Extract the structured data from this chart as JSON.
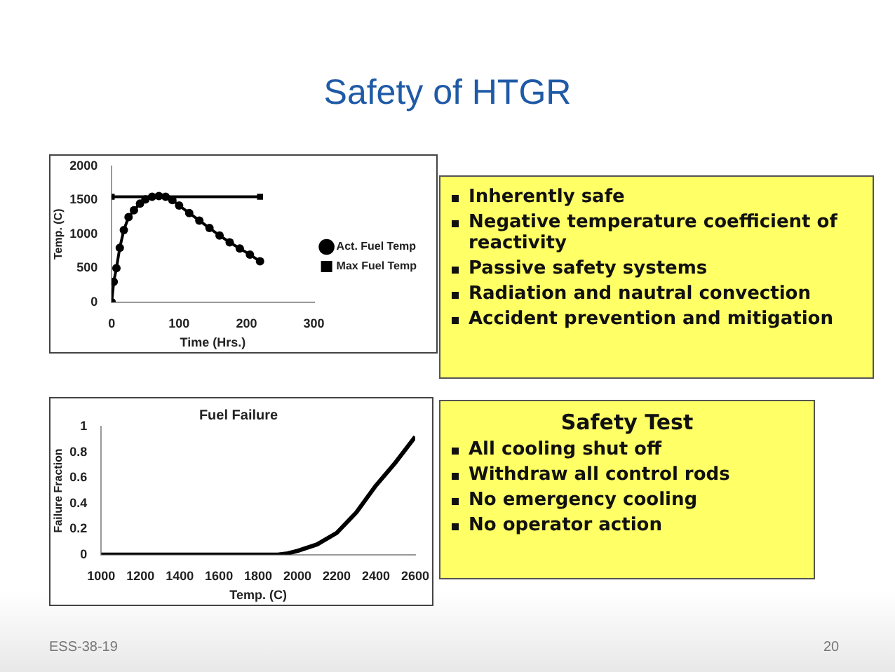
{
  "chart_data": [
    {
      "type": "other",
      "title": "Safety of HTGR",
      "annotations": [
        "ESS-38-19",
        "20"
      ]
    },
    {
      "type": "line",
      "xlabel": "Time (Hrs.)",
      "ylabel": "Temp. (C)",
      "xlim": [
        0,
        300
      ],
      "xticks": [
        0,
        100,
        200,
        300
      ],
      "ylim": [
        0,
        2000
      ],
      "yticks": [
        0,
        500,
        1000,
        1500,
        2000
      ],
      "grid": false,
      "legend": "right",
      "line_style": "solid",
      "series": [
        {
          "name": "Act. Fuel Temp",
          "color": "#000000",
          "marker": "circle",
          "x": [
            0,
            3,
            7,
            12,
            18,
            25,
            33,
            42,
            50,
            60,
            70,
            80,
            90,
            100,
            115,
            130,
            145,
            160,
            175,
            190,
            205,
            220
          ],
          "values": [
            0,
            300,
            500,
            800,
            1060,
            1250,
            1350,
            1450,
            1510,
            1550,
            1560,
            1550,
            1500,
            1420,
            1310,
            1200,
            1090,
            980,
            880,
            790,
            700,
            600
          ]
        },
        {
          "name": "Max Fuel Temp",
          "color": "#000000",
          "marker": "square",
          "x": [
            0,
            220
          ],
          "values": [
            1550,
            1550
          ]
        }
      ]
    },
    {
      "type": "other",
      "annotations": [
        "Inherently safe",
        "Negative temperature coefficient of reactivity",
        "Passive safety systems",
        "Radiation and nautral convection",
        "Accident prevention and mitigation"
      ]
    },
    {
      "type": "line",
      "title": "Fuel Failure",
      "xlabel": "Temp. (C)",
      "ylabel": "Failure Fraction",
      "xlim": [
        1000,
        2600
      ],
      "xticks": [
        1000,
        1200,
        1400,
        1600,
        1800,
        2000,
        2200,
        2400,
        2600
      ],
      "ylim": [
        0,
        1
      ],
      "yticks": [
        0,
        0.2,
        0.4,
        0.6,
        0.8,
        1
      ],
      "grid": false,
      "legend": false,
      "line_style": "solid",
      "series": [
        {
          "color": "#000000",
          "marker": "none",
          "x": [
            1000,
            1200,
            1400,
            1600,
            1800,
            1900,
            1950,
            2000,
            2100,
            2200,
            2300,
            2400,
            2500,
            2600
          ],
          "values": [
            0,
            0,
            0,
            0,
            0,
            0,
            0.01,
            0.03,
            0.08,
            0.17,
            0.33,
            0.54,
            0.72,
            0.92
          ]
        }
      ]
    },
    {
      "type": "other",
      "title": "Safety Test",
      "annotations": [
        "All cooling shut off",
        "Withdraw all control rods",
        "No emergency cooling",
        "No operator action"
      ]
    }
  ]
}
